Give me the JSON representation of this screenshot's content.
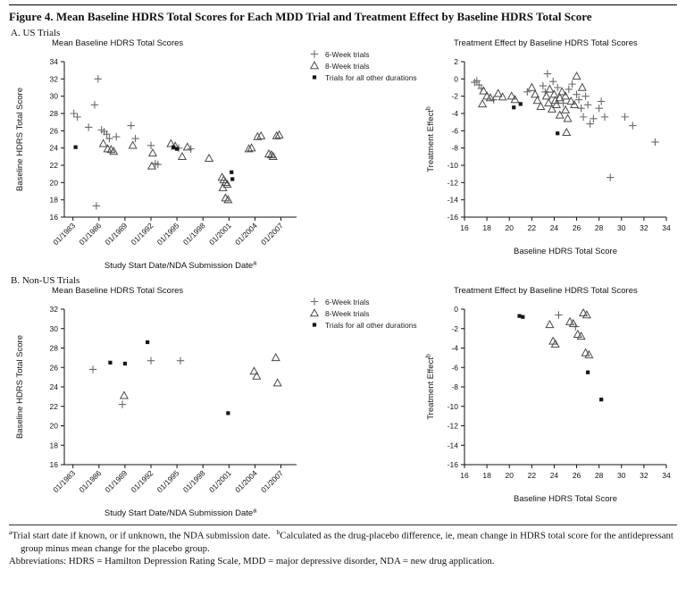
{
  "title": "Figure 4. Mean Baseline HDRS Total Scores for Each MDD Trial and Treatment Effect by Baseline HDRS Total Score",
  "panels": [
    {
      "label": "A. US Trials"
    },
    {
      "label": "B. Non-US Trials"
    }
  ],
  "colors": {
    "plus": "#6b6b6b",
    "triangle": "#4a4a4a",
    "square": "#161616",
    "axis": "#111111"
  },
  "legend": {
    "items": [
      {
        "marker": "plus",
        "label": "6-Week trials"
      },
      {
        "marker": "triangle",
        "label": "8-Week trials"
      },
      {
        "marker": "square",
        "label": "Trials for all other durations"
      }
    ]
  },
  "footnotes": {
    "a_sup": "a",
    "a_text": "Trial start date if known, or if unknown, the NDA submission date.",
    "b_sup": "b",
    "b_text": "Calculated as the drug-placebo difference, ie, mean change in HDRS total score for the antidepressant group minus mean change for the placebo group.",
    "abbreviations": "Abbreviations: HDRS = Hamilton Depression Rating Scale, MDD = major depressive disorder, NDA = new drug application."
  },
  "chart_data": [
    {
      "type": "scatter",
      "title": "Mean Baseline HDRS Total Scores",
      "xlabel": "Study Start Date/NDA Submission Date",
      "xlabel_sup": "a",
      "ylabel": "Baseline HDRS Total Score",
      "ylabel_sup": "",
      "x_axis": {
        "lim": [
          1982,
          2008.8
        ],
        "rotate": true,
        "ticks": [
          1983,
          1986,
          1989,
          1992,
          1995,
          1998,
          2001,
          2004,
          2007
        ],
        "tick_labels": [
          "01/1983",
          "01/1986",
          "01/1989",
          "01/1992",
          "01/1995",
          "01/1998",
          "01/2001",
          "01/2004",
          "01/2007"
        ]
      },
      "y_axis": {
        "lim": [
          16,
          34
        ],
        "ticks": [
          16,
          18,
          20,
          22,
          24,
          26,
          28,
          30,
          32,
          34
        ],
        "tick_labels": [
          "16",
          "18",
          "20",
          "22",
          "24",
          "26",
          "28",
          "30",
          "32",
          "34"
        ]
      },
      "series": [
        {
          "name": "6-Week trials",
          "marker": "plus",
          "points": [
            [
              1983.1,
              28.0
            ],
            [
              1983.5,
              27.6
            ],
            [
              1984.8,
              26.4
            ],
            [
              1985.5,
              29.0
            ],
            [
              1985.9,
              32.0
            ],
            [
              1985.7,
              17.3
            ],
            [
              1986.3,
              26.1
            ],
            [
              1986.6,
              25.9
            ],
            [
              1986.9,
              25.6
            ],
            [
              1987.2,
              25.1
            ],
            [
              1988.0,
              25.3
            ],
            [
              1989.7,
              26.6
            ],
            [
              1990.2,
              25.1
            ],
            [
              1992.0,
              24.3
            ],
            [
              1992.5,
              22.2
            ],
            [
              1992.8,
              22.1
            ],
            [
              1995.2,
              24.0
            ],
            [
              1996.6,
              23.9
            ]
          ]
        },
        {
          "name": "8-Week trials",
          "marker": "triangle",
          "points": [
            [
              1986.5,
              24.5
            ],
            [
              1987.0,
              23.9
            ],
            [
              1987.4,
              23.8
            ],
            [
              1987.7,
              23.6
            ],
            [
              1989.9,
              24.3
            ],
            [
              1992.2,
              23.4
            ],
            [
              1992.1,
              21.9
            ],
            [
              1994.3,
              24.5
            ],
            [
              1994.8,
              24.2
            ],
            [
              1995.6,
              23.0
            ],
            [
              1996.2,
              24.1
            ],
            [
              1998.7,
              22.8
            ],
            [
              2000.2,
              20.6
            ],
            [
              2000.4,
              20.3
            ],
            [
              2000.6,
              20.0
            ],
            [
              2000.8,
              19.8
            ],
            [
              2000.3,
              19.4
            ],
            [
              2000.6,
              18.2
            ],
            [
              2000.9,
              18.0
            ],
            [
              2003.3,
              23.9
            ],
            [
              2003.6,
              24.0
            ],
            [
              2004.3,
              25.3
            ],
            [
              2004.7,
              25.4
            ],
            [
              2005.6,
              23.3
            ],
            [
              2005.9,
              23.2
            ],
            [
              2006.1,
              23.0
            ],
            [
              2006.5,
              25.4
            ],
            [
              2006.8,
              25.5
            ]
          ]
        },
        {
          "name": "Trials for all other durations",
          "marker": "square",
          "points": [
            [
              1983.3,
              24.1
            ],
            [
              1994.6,
              24.1
            ],
            [
              1995.0,
              23.9
            ],
            [
              2001.3,
              21.2
            ],
            [
              2001.4,
              20.4
            ]
          ]
        }
      ]
    },
    {
      "type": "scatter",
      "title": "Treatment Effect by Baseline HDRS Total Scores",
      "xlabel": "Baseline HDRS Total Score",
      "xlabel_sup": "",
      "ylabel": "Treatment Effect",
      "ylabel_sup": "b",
      "x_axis": {
        "lim": [
          16,
          34
        ],
        "rotate": false,
        "ticks": [
          16,
          18,
          20,
          22,
          24,
          26,
          28,
          30,
          32,
          34
        ],
        "tick_labels": [
          "16",
          "18",
          "20",
          "22",
          "24",
          "26",
          "28",
          "30",
          "32",
          "34"
        ]
      },
      "y_axis": {
        "lim": [
          -16,
          2
        ],
        "ticks": [
          -16,
          -14,
          -12,
          -10,
          -8,
          -6,
          -4,
          -2,
          0,
          2
        ],
        "tick_labels": [
          "-16",
          "-14",
          "-12",
          "-10",
          "-8",
          "-6",
          "-4",
          "-2",
          "0",
          "2"
        ]
      },
      "series": [
        {
          "name": "6-Week trials",
          "marker": "plus",
          "points": [
            [
              16.9,
              -0.4
            ],
            [
              17.1,
              -0.2
            ],
            [
              17.3,
              -0.7
            ],
            [
              17.5,
              -1.1
            ],
            [
              18.6,
              -2.4
            ],
            [
              21.6,
              -1.5
            ],
            [
              23.0,
              -0.8
            ],
            [
              23.4,
              0.6
            ],
            [
              23.2,
              -1.5
            ],
            [
              23.9,
              -0.3
            ],
            [
              24.3,
              -1.0
            ],
            [
              24.8,
              -2.8
            ],
            [
              25.3,
              -1.2
            ],
            [
              25.6,
              -0.6
            ],
            [
              26.0,
              -1.8
            ],
            [
              26.2,
              -2.4
            ],
            [
              26.4,
              -3.4
            ],
            [
              26.6,
              -4.4
            ],
            [
              26.8,
              -2.0
            ],
            [
              27.0,
              -3.0
            ],
            [
              27.2,
              -5.2
            ],
            [
              27.5,
              -4.6
            ],
            [
              28.0,
              -3.4
            ],
            [
              28.2,
              -2.6
            ],
            [
              28.5,
              -4.4
            ],
            [
              29.0,
              -11.4
            ],
            [
              30.3,
              -4.4
            ],
            [
              31.0,
              -5.4
            ],
            [
              33.0,
              -7.3
            ]
          ]
        },
        {
          "name": "8-Week trials",
          "marker": "triangle",
          "points": [
            [
              17.7,
              -1.4
            ],
            [
              17.6,
              -2.9
            ],
            [
              18.0,
              -2.0
            ],
            [
              18.3,
              -2.2
            ],
            [
              19.0,
              -1.7
            ],
            [
              19.4,
              -2.1
            ],
            [
              20.2,
              -2.0
            ],
            [
              20.5,
              -2.4
            ],
            [
              22.0,
              -1.0
            ],
            [
              22.3,
              -1.8
            ],
            [
              22.5,
              -2.5
            ],
            [
              22.8,
              -3.2
            ],
            [
              23.3,
              -2.0
            ],
            [
              23.5,
              -2.8
            ],
            [
              23.6,
              -1.2
            ],
            [
              23.8,
              -3.5
            ],
            [
              24.0,
              -1.8
            ],
            [
              24.1,
              -2.5
            ],
            [
              24.2,
              -3.0
            ],
            [
              24.5,
              -2.2
            ],
            [
              24.5,
              -4.2
            ],
            [
              24.7,
              -1.5
            ],
            [
              25.0,
              -2.0
            ],
            [
              25.0,
              -3.6
            ],
            [
              25.2,
              -4.6
            ],
            [
              25.1,
              -6.2
            ],
            [
              25.5,
              -2.6
            ],
            [
              25.8,
              -3.0
            ],
            [
              26.0,
              0.3
            ],
            [
              26.5,
              -1.0
            ]
          ]
        },
        {
          "name": "Trials for all other durations",
          "marker": "square",
          "points": [
            [
              20.4,
              -3.3
            ],
            [
              21.0,
              -2.9
            ],
            [
              24.3,
              -6.3
            ]
          ]
        }
      ]
    },
    {
      "type": "scatter",
      "title": "Mean Baseline HDRS Total Scores",
      "xlabel": "Study Start Date/NDA Submission Date",
      "xlabel_sup": "a",
      "ylabel": "Baseline HDRS Total Score",
      "ylabel_sup": "",
      "x_axis": {
        "lim": [
          1982,
          2008.8
        ],
        "rotate": true,
        "ticks": [
          1983,
          1986,
          1989,
          1992,
          1995,
          1998,
          2001,
          2004,
          2007
        ],
        "tick_labels": [
          "01/1983",
          "01/1986",
          "01/1989",
          "01/1992",
          "01/1995",
          "01/1998",
          "01/2001",
          "01/2004",
          "01/2007"
        ]
      },
      "y_axis": {
        "lim": [
          16,
          32
        ],
        "ticks": [
          16,
          18,
          20,
          22,
          24,
          26,
          28,
          30,
          32
        ],
        "tick_labels": [
          "16",
          "18",
          "20",
          "22",
          "24",
          "26",
          "28",
          "30",
          "32"
        ]
      },
      "series": [
        {
          "name": "6-Week trials",
          "marker": "plus",
          "points": [
            [
              1985.3,
              25.8
            ],
            [
              1988.7,
              22.2
            ],
            [
              1992.0,
              26.7
            ],
            [
              1995.4,
              26.7
            ]
          ]
        },
        {
          "name": "8-Week trials",
          "marker": "triangle",
          "points": [
            [
              1988.9,
              23.1
            ],
            [
              2003.9,
              25.6
            ],
            [
              2004.2,
              25.1
            ],
            [
              2006.4,
              27.0
            ],
            [
              2006.6,
              24.4
            ]
          ]
        },
        {
          "name": "Trials for all other durations",
          "marker": "square",
          "points": [
            [
              1987.3,
              26.5
            ],
            [
              1989.0,
              26.4
            ],
            [
              1991.6,
              28.6
            ],
            [
              2000.9,
              21.3
            ]
          ]
        }
      ]
    },
    {
      "type": "scatter",
      "title": "Treatment Effect by Baseline HDRS Total Scores",
      "xlabel": "Baseline HDRS Total Score",
      "xlabel_sup": "",
      "ylabel": "Treatment Effect",
      "ylabel_sup": "b",
      "x_axis": {
        "lim": [
          16,
          34
        ],
        "rotate": false,
        "ticks": [
          16,
          18,
          20,
          22,
          24,
          26,
          28,
          30,
          32,
          34
        ],
        "tick_labels": [
          "16",
          "18",
          "20",
          "22",
          "24",
          "26",
          "28",
          "30",
          "32",
          "34"
        ]
      },
      "y_axis": {
        "lim": [
          -16,
          0
        ],
        "ticks": [
          -16,
          -14,
          -12,
          -10,
          -8,
          -6,
          -4,
          -2,
          0
        ],
        "tick_labels": [
          "-16",
          "-14",
          "-12",
          "-10",
          "-8",
          "-6",
          "-4",
          "-2",
          "0"
        ]
      },
      "series": [
        {
          "name": "6-Week trials",
          "marker": "plus",
          "points": [
            [
              24.4,
              -0.6
            ],
            [
              25.9,
              -1.8
            ]
          ]
        },
        {
          "name": "8-Week trials",
          "marker": "triangle",
          "points": [
            [
              23.6,
              -1.6
            ],
            [
              23.9,
              -3.3
            ],
            [
              24.1,
              -3.6
            ],
            [
              25.4,
              -1.3
            ],
            [
              25.7,
              -1.5
            ],
            [
              26.1,
              -2.6
            ],
            [
              26.4,
              -2.8
            ],
            [
              26.6,
              -0.4
            ],
            [
              26.9,
              -0.6
            ],
            [
              26.8,
              -4.5
            ],
            [
              27.1,
              -4.7
            ]
          ]
        },
        {
          "name": "Trials for all other durations",
          "marker": "square",
          "points": [
            [
              20.9,
              -0.7
            ],
            [
              21.2,
              -0.8
            ],
            [
              27.0,
              -6.5
            ],
            [
              28.2,
              -9.3
            ]
          ]
        }
      ]
    }
  ]
}
